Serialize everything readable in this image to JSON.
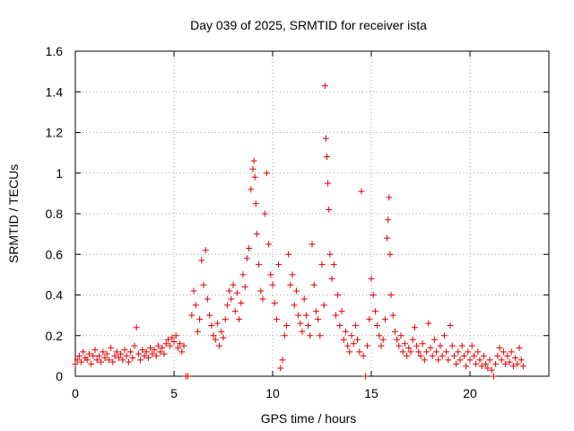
{
  "chart_data": {
    "type": "scatter",
    "title": "Day 039 of 2025, SRMTID for receiver ista",
    "xlabel": "GPS time / hours",
    "ylabel": "SRMTID / TECUs",
    "xlim": [
      0,
      24
    ],
    "ylim": [
      0,
      1.6
    ],
    "x_ticks": [
      0,
      5,
      10,
      15,
      20
    ],
    "y_ticks": [
      0,
      0.2,
      0.4,
      0.6,
      0.8,
      1,
      1.2,
      1.4,
      1.6
    ],
    "x_tick_labels": [
      "0",
      "5",
      "10",
      "15",
      "20"
    ],
    "y_tick_labels": [
      "0",
      "0.2",
      "0.4",
      "0.6",
      "0.8",
      "1",
      "1.2",
      "1.4",
      "1.6"
    ],
    "grid": true,
    "marker": "+",
    "color": "#e00000",
    "series": [
      {
        "name": "SRMTID",
        "points": [
          [
            0.0,
            0.06
          ],
          [
            0.1,
            0.08
          ],
          [
            0.2,
            0.1
          ],
          [
            0.3,
            0.07
          ],
          [
            0.4,
            0.12
          ],
          [
            0.5,
            0.09
          ],
          [
            0.6,
            0.08
          ],
          [
            0.7,
            0.11
          ],
          [
            0.8,
            0.06
          ],
          [
            0.9,
            0.1
          ],
          [
            1.0,
            0.13
          ],
          [
            1.1,
            0.08
          ],
          [
            1.2,
            0.1
          ],
          [
            1.3,
            0.07
          ],
          [
            1.4,
            0.12
          ],
          [
            1.5,
            0.09
          ],
          [
            1.6,
            0.11
          ],
          [
            1.7,
            0.08
          ],
          [
            1.8,
            0.14
          ],
          [
            1.9,
            0.07
          ],
          [
            2.0,
            0.1
          ],
          [
            2.1,
            0.12
          ],
          [
            2.2,
            0.09
          ],
          [
            2.3,
            0.11
          ],
          [
            2.4,
            0.08
          ],
          [
            2.5,
            0.13
          ],
          [
            2.6,
            0.1
          ],
          [
            2.7,
            0.07
          ],
          [
            2.8,
            0.12
          ],
          [
            2.9,
            0.09
          ],
          [
            3.0,
            0.15
          ],
          [
            3.1,
            0.24
          ],
          [
            3.2,
            0.11
          ],
          [
            3.3,
            0.08
          ],
          [
            3.4,
            0.13
          ],
          [
            3.5,
            0.1
          ],
          [
            3.6,
            0.12
          ],
          [
            3.7,
            0.09
          ],
          [
            3.8,
            0.14
          ],
          [
            3.9,
            0.11
          ],
          [
            4.0,
            0.13
          ],
          [
            4.1,
            0.1
          ],
          [
            4.2,
            0.15
          ],
          [
            4.3,
            0.12
          ],
          [
            4.4,
            0.14
          ],
          [
            4.5,
            0.11
          ],
          [
            4.6,
            0.16
          ],
          [
            4.7,
            0.18
          ],
          [
            4.8,
            0.15
          ],
          [
            4.9,
            0.19
          ],
          [
            5.0,
            0.17
          ],
          [
            5.1,
            0.2
          ],
          [
            5.2,
            0.14
          ],
          [
            5.3,
            0.16
          ],
          [
            5.4,
            0.12
          ],
          [
            5.5,
            0.15
          ],
          [
            5.6,
            0.0
          ],
          [
            5.7,
            0.0
          ],
          [
            5.9,
            0.3
          ],
          [
            6.0,
            0.42
          ],
          [
            6.1,
            0.35
          ],
          [
            6.2,
            0.22
          ],
          [
            6.3,
            0.28
          ],
          [
            6.4,
            0.57
          ],
          [
            6.5,
            0.45
          ],
          [
            6.6,
            0.62
          ],
          [
            6.7,
            0.38
          ],
          [
            6.8,
            0.3
          ],
          [
            6.9,
            0.25
          ],
          [
            7.0,
            0.2
          ],
          [
            7.1,
            0.18
          ],
          [
            7.2,
            0.26
          ],
          [
            7.3,
            0.15
          ],
          [
            7.4,
            0.22
          ],
          [
            7.5,
            0.19
          ],
          [
            7.6,
            0.28
          ],
          [
            7.7,
            0.35
          ],
          [
            7.8,
            0.42
          ],
          [
            7.9,
            0.38
          ],
          [
            8.0,
            0.45
          ],
          [
            8.1,
            0.32
          ],
          [
            8.2,
            0.41
          ],
          [
            8.3,
            0.28
          ],
          [
            8.4,
            0.36
          ],
          [
            8.5,
            0.5
          ],
          [
            8.6,
            0.44
          ],
          [
            8.7,
            0.58
          ],
          [
            8.8,
            0.63
          ],
          [
            8.9,
            0.92
          ],
          [
            9.0,
            1.02
          ],
          [
            9.05,
            1.06
          ],
          [
            9.1,
            0.98
          ],
          [
            9.15,
            0.85
          ],
          [
            9.2,
            0.7
          ],
          [
            9.3,
            0.55
          ],
          [
            9.4,
            0.42
          ],
          [
            9.5,
            0.38
          ],
          [
            9.6,
            0.8
          ],
          [
            9.7,
            1.0
          ],
          [
            9.8,
            0.65
          ],
          [
            9.9,
            0.5
          ],
          [
            10.0,
            0.45
          ],
          [
            10.1,
            0.36
          ],
          [
            10.2,
            0.28
          ],
          [
            10.3,
            0.55
          ],
          [
            10.4,
            0.04
          ],
          [
            10.5,
            0.08
          ],
          [
            10.6,
            0.2
          ],
          [
            10.7,
            0.25
          ],
          [
            10.8,
            0.6
          ],
          [
            10.9,
            0.45
          ],
          [
            11.0,
            0.5
          ],
          [
            11.1,
            0.35
          ],
          [
            11.2,
            0.42
          ],
          [
            11.3,
            0.3
          ],
          [
            11.4,
            0.26
          ],
          [
            11.5,
            0.22
          ],
          [
            11.6,
            0.38
          ],
          [
            11.7,
            0.3
          ],
          [
            11.8,
            0.25
          ],
          [
            11.9,
            0.2
          ],
          [
            12.0,
            0.65
          ],
          [
            12.1,
            0.45
          ],
          [
            12.2,
            0.32
          ],
          [
            12.3,
            0.28
          ],
          [
            12.4,
            0.2
          ],
          [
            12.5,
            0.55
          ],
          [
            12.6,
            0.35
          ],
          [
            12.65,
            1.43
          ],
          [
            12.7,
            1.17
          ],
          [
            12.75,
            1.08
          ],
          [
            12.8,
            0.95
          ],
          [
            12.85,
            0.82
          ],
          [
            12.9,
            0.6
          ],
          [
            13.0,
            0.48
          ],
          [
            13.1,
            0.55
          ],
          [
            13.2,
            0.3
          ],
          [
            13.3,
            0.4
          ],
          [
            13.4,
            0.25
          ],
          [
            13.5,
            0.32
          ],
          [
            13.6,
            0.18
          ],
          [
            13.7,
            0.22
          ],
          [
            13.8,
            0.15
          ],
          [
            13.9,
            0.12
          ],
          [
            14.0,
            0.2
          ],
          [
            14.1,
            0.16
          ],
          [
            14.2,
            0.25
          ],
          [
            14.3,
            0.18
          ],
          [
            14.4,
            0.12
          ],
          [
            14.5,
            0.91
          ],
          [
            14.6,
            0.1
          ],
          [
            14.7,
            0.0
          ],
          [
            14.8,
            0.15
          ],
          [
            14.9,
            0.28
          ],
          [
            15.0,
            0.48
          ],
          [
            15.1,
            0.4
          ],
          [
            15.2,
            0.32
          ],
          [
            15.3,
            0.25
          ],
          [
            15.4,
            0.2
          ],
          [
            15.5,
            0.15
          ],
          [
            15.6,
            0.18
          ],
          [
            15.7,
            0.28
          ],
          [
            15.8,
            0.68
          ],
          [
            15.85,
            0.77
          ],
          [
            15.9,
            0.88
          ],
          [
            15.95,
            0.6
          ],
          [
            16.0,
            0.4
          ],
          [
            16.1,
            0.3
          ],
          [
            16.2,
            0.22
          ],
          [
            16.3,
            0.18
          ],
          [
            16.4,
            0.15
          ],
          [
            16.5,
            0.2
          ],
          [
            16.6,
            0.12
          ],
          [
            16.7,
            0.16
          ],
          [
            16.8,
            0.1
          ],
          [
            16.9,
            0.14
          ],
          [
            17.0,
            0.12
          ],
          [
            17.1,
            0.18
          ],
          [
            17.2,
            0.24
          ],
          [
            17.3,
            0.15
          ],
          [
            17.4,
            0.12
          ],
          [
            17.5,
            0.1
          ],
          [
            17.6,
            0.16
          ],
          [
            17.7,
            0.08
          ],
          [
            17.8,
            0.12
          ],
          [
            17.9,
            0.26
          ],
          [
            18.0,
            0.14
          ],
          [
            18.1,
            0.1
          ],
          [
            18.2,
            0.18
          ],
          [
            18.3,
            0.12
          ],
          [
            18.4,
            0.08
          ],
          [
            18.5,
            0.15
          ],
          [
            18.6,
            0.1
          ],
          [
            18.7,
            0.2
          ],
          [
            18.8,
            0.12
          ],
          [
            18.9,
            0.08
          ],
          [
            19.0,
            0.25
          ],
          [
            19.1,
            0.15
          ],
          [
            19.2,
            0.1
          ],
          [
            19.3,
            0.06
          ],
          [
            19.4,
            0.12
          ],
          [
            19.5,
            0.08
          ],
          [
            19.6,
            0.15
          ],
          [
            19.7,
            0.1
          ],
          [
            19.8,
            0.05
          ],
          [
            19.9,
            0.12
          ],
          [
            20.0,
            0.08
          ],
          [
            20.1,
            0.15
          ],
          [
            20.2,
            0.1
          ],
          [
            20.3,
            0.06
          ],
          [
            20.4,
            0.12
          ],
          [
            20.5,
            0.08
          ],
          [
            20.6,
            0.05
          ],
          [
            20.7,
            0.1
          ],
          [
            20.8,
            0.06
          ],
          [
            20.9,
            0.04
          ],
          [
            21.0,
            0.08
          ],
          [
            21.1,
            0.03
          ],
          [
            21.2,
            0.0
          ],
          [
            21.3,
            0.06
          ],
          [
            21.4,
            0.1
          ],
          [
            21.5,
            0.14
          ],
          [
            21.6,
            0.08
          ],
          [
            21.7,
            0.12
          ],
          [
            21.8,
            0.06
          ],
          [
            21.9,
            0.1
          ],
          [
            22.0,
            0.07
          ],
          [
            22.1,
            0.12
          ],
          [
            22.2,
            0.05
          ],
          [
            22.3,
            0.09
          ],
          [
            22.4,
            0.06
          ],
          [
            22.5,
            0.14
          ],
          [
            22.6,
            0.08
          ],
          [
            22.7,
            0.05
          ]
        ]
      }
    ]
  }
}
